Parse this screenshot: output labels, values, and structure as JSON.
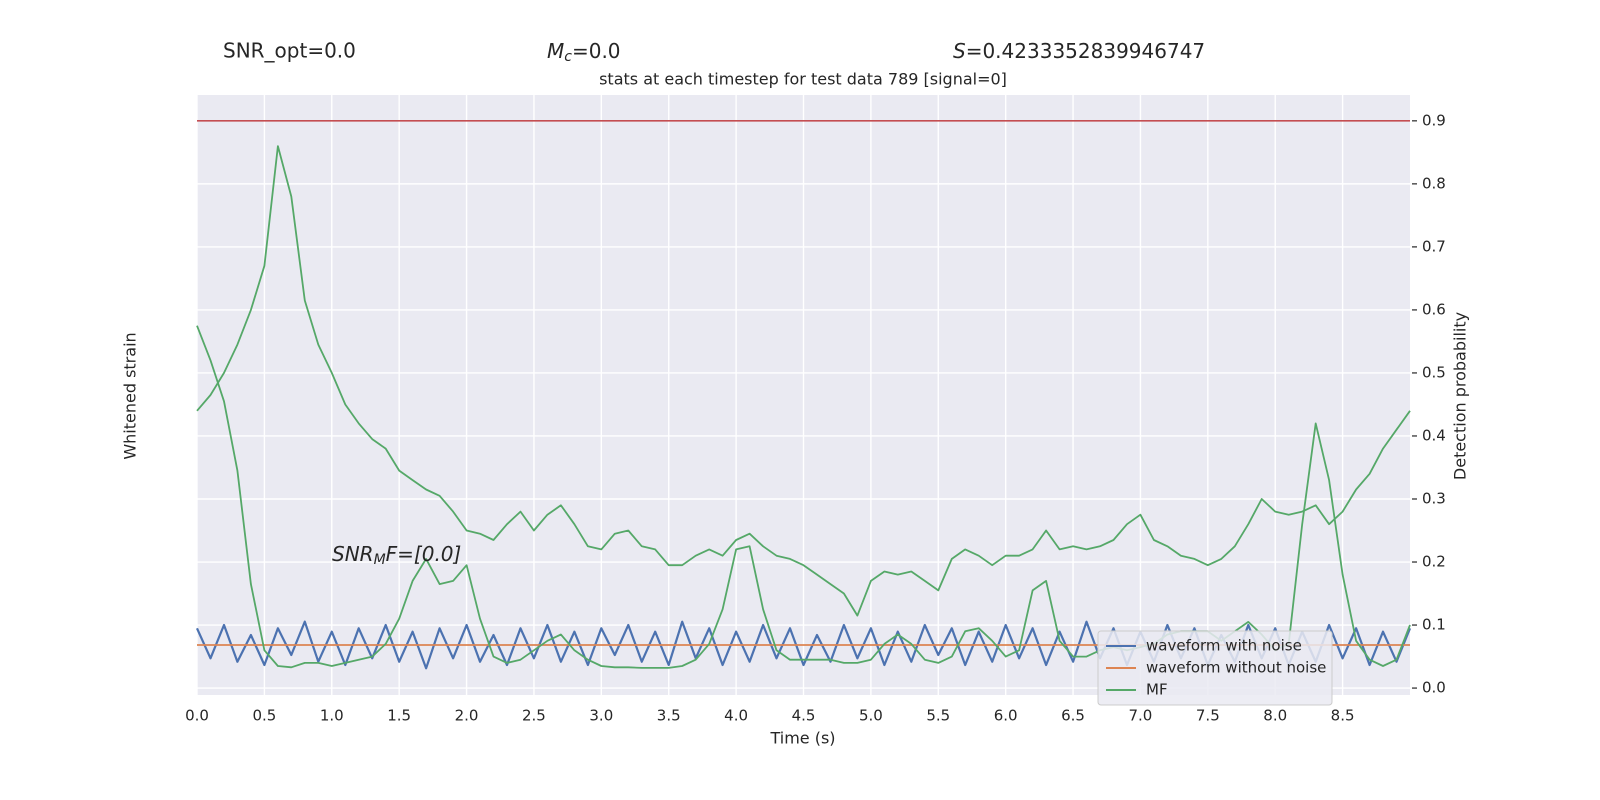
{
  "chart_data": {
    "type": "line",
    "title": "stats at each timestep for test data 789 [signal=0]",
    "annotations": {
      "snr_opt": "SNR_opt=0.0",
      "mc": {
        "symbol": "M",
        "subscript": "c",
        "text": "=0.0"
      },
      "s": {
        "symbol": "S",
        "text": "=0.4233352839946747"
      },
      "snr_mf": {
        "symbol": "SNR",
        "subscript": "M",
        "text": "F=[0.0]"
      }
    },
    "xlabel": "Time (s)",
    "ylabel": "Whitened strain",
    "y2label": "Detection probability",
    "xlim": [
      0,
      9.0
    ],
    "ylim": [
      -1.5,
      16.5
    ],
    "y2lim": [
      -0.011,
      0.941
    ],
    "xticks": [
      {
        "value": 0,
        "label": "0.0"
      },
      0.5,
      {
        "value": 1,
        "label": "1.0"
      },
      1.5,
      {
        "value": 2,
        "label": "2.0"
      },
      2.5,
      {
        "value": 3,
        "label": "3.0"
      },
      3.5,
      {
        "value": 4,
        "label": "4.0"
      },
      4.5,
      {
        "value": 5,
        "label": "5.0"
      },
      5.5,
      {
        "value": 6,
        "label": "6.0"
      },
      6.5,
      {
        "value": 7,
        "label": "7.0"
      },
      7.5,
      {
        "value": 8,
        "label": "8.0"
      },
      8.5
    ],
    "y2ticks": [
      {
        "value": 0,
        "label": "0.0"
      },
      0.1,
      0.2,
      0.3,
      0.4,
      0.5,
      0.6,
      0.7,
      0.8,
      0.9
    ],
    "threshold": 0.9,
    "threshold_color": "#c44e52",
    "grid": true,
    "legend": "lower right",
    "x": [
      0,
      0.1,
      0.2,
      0.3,
      0.4,
      0.5,
      0.6,
      0.7,
      0.8,
      0.9,
      1.0,
      1.1,
      1.2,
      1.3,
      1.4,
      1.5,
      1.6,
      1.7,
      1.8,
      1.9,
      2.0,
      2.1,
      2.2,
      2.3,
      2.4,
      2.5,
      2.6,
      2.7,
      2.8,
      2.9,
      3.0,
      3.1,
      3.2,
      3.3,
      3.4,
      3.5,
      3.6,
      3.7,
      3.8,
      3.9,
      4.0,
      4.1,
      4.2,
      4.3,
      4.4,
      4.5,
      4.6,
      4.7,
      4.8,
      4.9,
      5.0,
      5.1,
      5.2,
      5.3,
      5.4,
      5.5,
      5.6,
      5.7,
      5.8,
      5.9,
      6.0,
      6.1,
      6.2,
      6.3,
      6.4,
      6.5,
      6.6,
      6.7,
      6.8,
      6.9,
      7.0,
      7.1,
      7.2,
      7.3,
      7.4,
      7.5,
      7.6,
      7.7,
      7.8,
      7.9,
      8.0,
      8.1,
      8.2,
      8.3,
      8.4,
      8.5,
      8.6,
      8.7,
      8.8,
      8.9,
      9.0
    ],
    "series": [
      {
        "name": "waveform with noise",
        "color": "#4c72b0",
        "values": [
          0.5,
          -0.4,
          0.6,
          -0.5,
          0.3,
          -0.6,
          0.5,
          -0.3,
          0.7,
          -0.5,
          0.4,
          -0.6,
          0.5,
          -0.4,
          0.6,
          -0.5,
          0.4,
          -0.7,
          0.5,
          -0.4,
          0.6,
          -0.5,
          0.3,
          -0.6,
          0.5,
          -0.4,
          0.6,
          -0.5,
          0.4,
          -0.6,
          0.5,
          -0.3,
          0.6,
          -0.5,
          0.4,
          -0.6,
          0.7,
          -0.4,
          0.5,
          -0.6,
          0.4,
          -0.5,
          0.6,
          -0.4,
          0.5,
          -0.6,
          0.3,
          -0.5,
          0.6,
          -0.4,
          0.5,
          -0.6,
          0.4,
          -0.5,
          0.6,
          -0.3,
          0.5,
          -0.6,
          0.4,
          -0.5,
          0.6,
          -0.4,
          0.5,
          -0.6,
          0.4,
          -0.5,
          0.7,
          -0.4,
          0.5,
          -0.6,
          0.4,
          -0.5,
          0.6,
          -0.4,
          0.5,
          -0.6,
          0.3,
          -0.5,
          0.6,
          -0.4,
          0.5,
          -0.6,
          0.4,
          -0.5,
          0.6,
          -0.4,
          0.5,
          -0.6,
          0.4,
          -0.5,
          0.5
        ]
      },
      {
        "name": "waveform without noise",
        "color": "#dd8452",
        "values": [
          0,
          0,
          0,
          0,
          0,
          0,
          0,
          0,
          0,
          0,
          0,
          0,
          0,
          0,
          0,
          0,
          0,
          0,
          0,
          0,
          0,
          0,
          0,
          0,
          0,
          0,
          0,
          0,
          0,
          0,
          0,
          0,
          0,
          0,
          0,
          0,
          0,
          0,
          0,
          0,
          0,
          0,
          0,
          0,
          0,
          0,
          0,
          0,
          0,
          0,
          0,
          0,
          0,
          0,
          0,
          0,
          0,
          0,
          0,
          0,
          0,
          0,
          0,
          0,
          0,
          0,
          0,
          0,
          0,
          0,
          0,
          0,
          0,
          0,
          0,
          0,
          0,
          0,
          0,
          0,
          0,
          0,
          0,
          0,
          0,
          0,
          0,
          0,
          0,
          0,
          0
        ]
      },
      {
        "name": "MF",
        "color": "#55a868",
        "axis": "y2",
        "values": [
          0.575,
          0.52,
          0.455,
          0.345,
          0.165,
          0.06,
          0.035,
          0.033,
          0.04,
          0.04,
          0.035,
          0.04,
          0.045,
          0.05,
          0.07,
          0.11,
          0.17,
          0.205,
          0.165,
          0.17,
          0.195,
          0.11,
          0.05,
          0.04,
          0.045,
          0.06,
          0.075,
          0.085,
          0.06,
          0.045,
          0.035,
          0.033,
          0.033,
          0.032,
          0.032,
          0.032,
          0.035,
          0.045,
          0.07,
          0.125,
          0.22,
          0.225,
          0.125,
          0.06,
          0.045,
          0.045,
          0.045,
          0.045,
          0.04,
          0.04,
          0.045,
          0.07,
          0.085,
          0.07,
          0.045,
          0.04,
          0.05,
          0.09,
          0.095,
          0.075,
          0.05,
          0.06,
          0.155,
          0.17,
          0.075,
          0.05,
          0.05,
          0.06,
          0.065,
          0.06,
          0.065,
          0.07,
          0.085,
          0.09,
          0.09,
          0.09,
          0.075,
          0.09,
          0.105,
          0.085,
          0.06,
          0.07,
          0.26,
          0.42,
          0.33,
          0.18,
          0.075,
          0.045,
          0.035,
          0.045,
          0.1
        ]
      },
      {
        "color": "#55a868",
        "axis": "y2",
        "values": [
          0.44,
          0.465,
          0.5,
          0.545,
          0.6,
          0.67,
          0.86,
          0.78,
          0.615,
          0.545,
          0.5,
          0.45,
          0.42,
          0.395,
          0.38,
          0.345,
          0.33,
          0.315,
          0.305,
          0.28,
          0.25,
          0.245,
          0.235,
          0.26,
          0.28,
          0.25,
          0.275,
          0.29,
          0.26,
          0.225,
          0.22,
          0.245,
          0.25,
          0.225,
          0.22,
          0.195,
          0.195,
          0.21,
          0.22,
          0.21,
          0.235,
          0.245,
          0.225,
          0.21,
          0.205,
          0.195,
          0.18,
          0.165,
          0.15,
          0.115,
          0.17,
          0.185,
          0.18,
          0.185,
          0.17,
          0.155,
          0.205,
          0.22,
          0.21,
          0.195,
          0.21,
          0.21,
          0.22,
          0.25,
          0.22,
          0.225,
          0.22,
          0.225,
          0.235,
          0.26,
          0.275,
          0.235,
          0.225,
          0.21,
          0.205,
          0.195,
          0.205,
          0.225,
          0.26,
          0.3,
          0.28,
          0.275,
          0.28,
          0.29,
          0.26,
          0.28,
          0.315,
          0.34,
          0.38,
          0.41,
          0.44
        ]
      }
    ]
  }
}
